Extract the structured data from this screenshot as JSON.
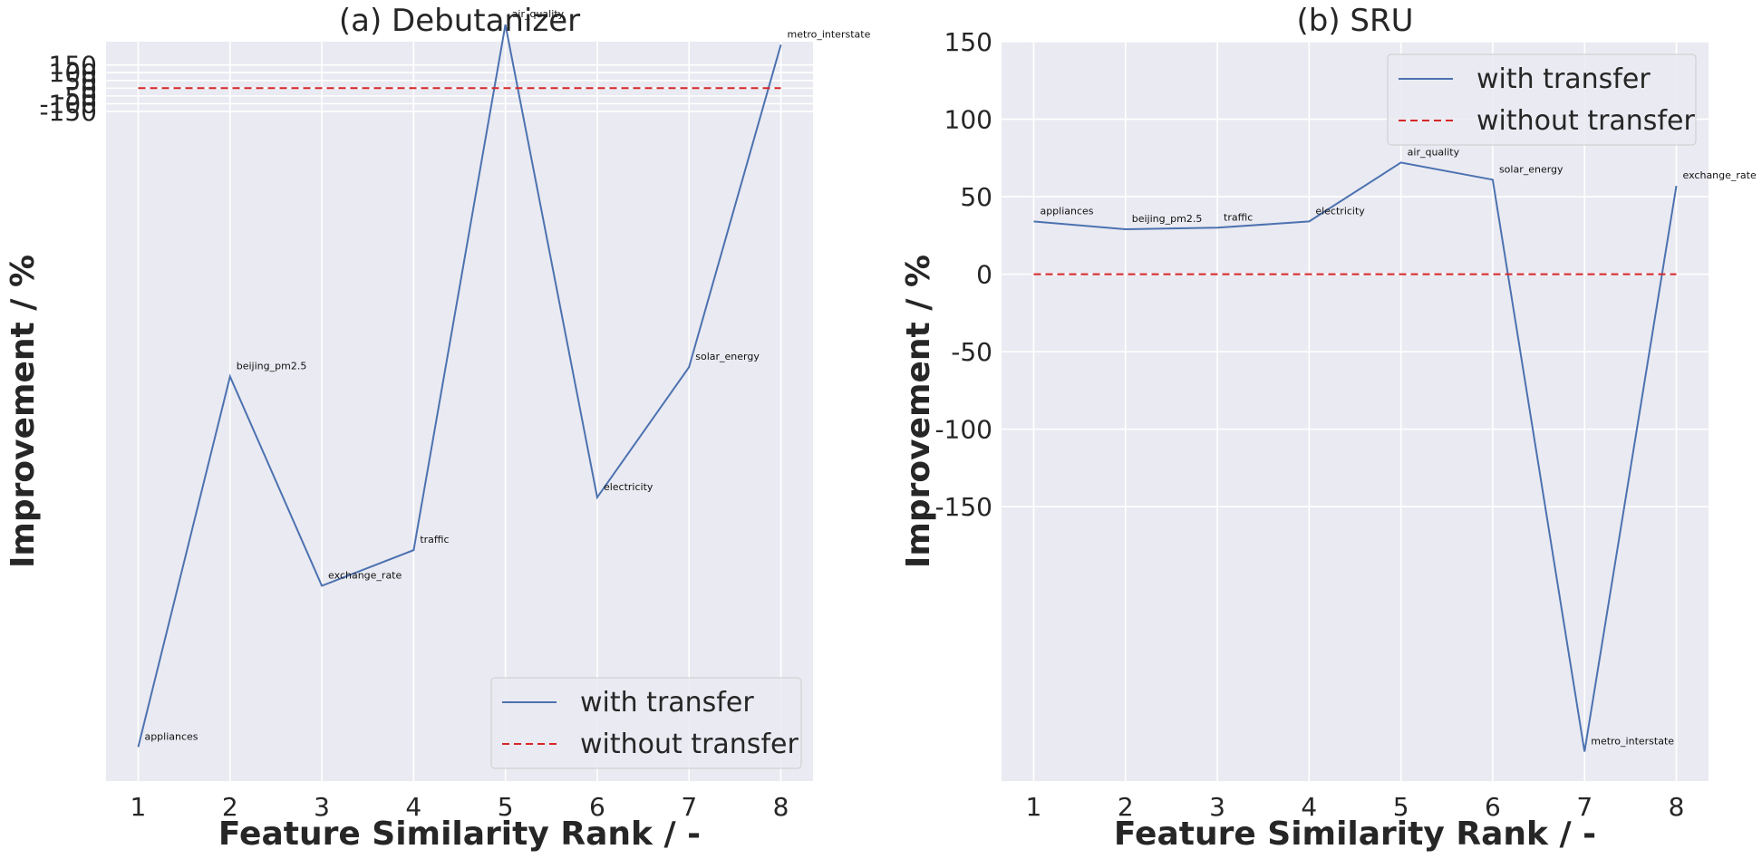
{
  "colors": {
    "with_transfer": "#4c72b0",
    "without_transfer": "#d62728",
    "plot_background": "#eaeaf2",
    "grid": "#ffffff"
  },
  "chart_data": [
    {
      "type": "line",
      "title": "(a) Debutanizer",
      "xlabel": "Feature Similarity Rank / -",
      "ylabel": "Improvement / %",
      "x": [
        1,
        2,
        3,
        4,
        5,
        6,
        7,
        8
      ],
      "point_labels": [
        "appliances",
        "beijing_pm2.5",
        "exchange_rate",
        "traffic",
        "air_quality",
        "electricity",
        "solar_energy",
        "metro_interstate"
      ],
      "series": [
        {
          "name": "with transfer",
          "style": "solid",
          "values": [
            -4250,
            -1860,
            -3210,
            -2980,
            410,
            -2640,
            -1800,
            280
          ]
        },
        {
          "name": "without transfer",
          "style": "dashed",
          "values": [
            0,
            0,
            0,
            0,
            0,
            0,
            0,
            0
          ]
        }
      ],
      "ylim": [
        -4470,
        300
      ],
      "yticks": [
        150,
        100,
        50,
        0,
        -50,
        -100,
        -150
      ],
      "ytick_labels": [
        "150",
        "100",
        "50",
        "0",
        "-50",
        "-100",
        "-150"
      ],
      "xlim": [
        0.65,
        8.35
      ],
      "xticks": [
        1,
        2,
        3,
        4,
        5,
        6,
        7,
        8
      ],
      "xtick_labels": [
        "1",
        "2",
        "3",
        "4",
        "5",
        "6",
        "7",
        "8"
      ],
      "grid": true,
      "legend": "lower right"
    },
    {
      "type": "line",
      "title": "(b) SRU",
      "xlabel": "Feature Similarity Rank / -",
      "ylabel": "Improvement / %",
      "x": [
        1,
        2,
        3,
        4,
        5,
        6,
        7,
        8
      ],
      "point_labels": [
        "appliances",
        "beijing_pm2.5",
        "traffic",
        "electricity",
        "air_quality",
        "solar_energy",
        "metro_interstate",
        "exchange_rate"
      ],
      "series": [
        {
          "name": "with transfer",
          "style": "solid",
          "values": [
            34,
            29,
            30,
            34,
            72,
            61,
            -308,
            57
          ]
        },
        {
          "name": "without transfer",
          "style": "dashed",
          "values": [
            0,
            0,
            0,
            0,
            0,
            0,
            0,
            0
          ]
        }
      ],
      "ylim": [
        -327,
        150
      ],
      "yticks": [
        150,
        100,
        50,
        0,
        -50,
        -100,
        -150
      ],
      "ytick_labels": [
        "150",
        "100",
        "50",
        "0",
        "-50",
        "-100",
        "-150"
      ],
      "xlim": [
        0.65,
        8.35
      ],
      "xticks": [
        1,
        2,
        3,
        4,
        5,
        6,
        7,
        8
      ],
      "xtick_labels": [
        "1",
        "2",
        "3",
        "4",
        "5",
        "6",
        "7",
        "8"
      ],
      "grid": true,
      "legend": "upper right"
    }
  ]
}
